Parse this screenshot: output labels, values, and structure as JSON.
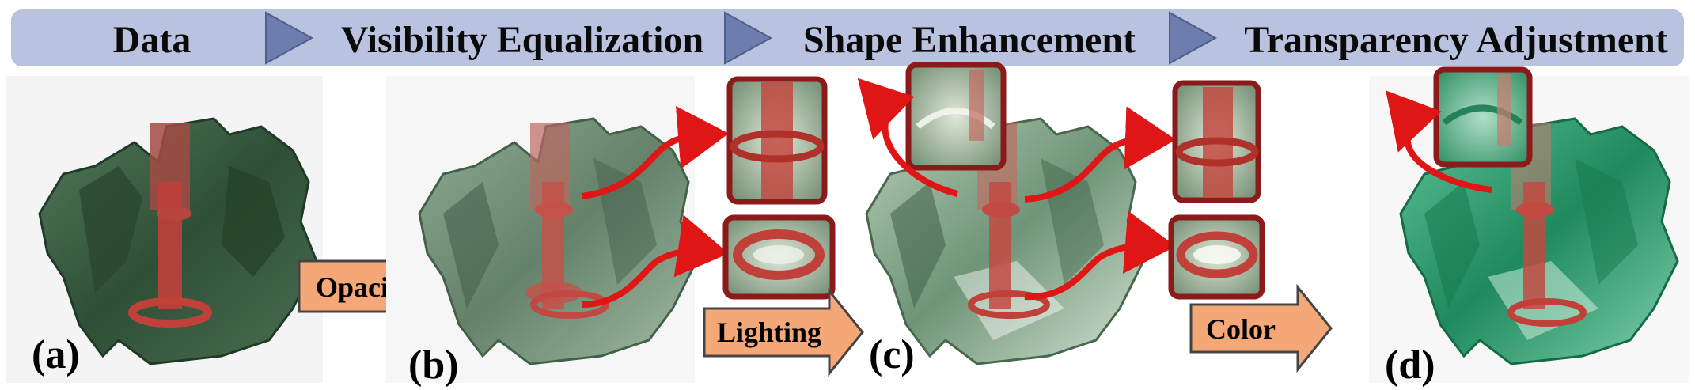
{
  "header": {
    "stages": [
      {
        "label": "Data"
      },
      {
        "label": "Visibility Equalization"
      },
      {
        "label": "Shape Enhancement"
      },
      {
        "label": "Transparency Adjustment"
      }
    ],
    "bar_color": "#b9c2de",
    "chevron_color": "#6d7eae"
  },
  "operations": [
    {
      "label": "Opacity"
    },
    {
      "label": "Lighting"
    },
    {
      "label": "Color"
    }
  ],
  "panels": [
    {
      "label": "(a)"
    },
    {
      "label": "(b)"
    },
    {
      "label": "(c)"
    },
    {
      "label": "(d)"
    }
  ],
  "colors": {
    "operation_arrow": "#f5a877",
    "zoom_frame": "#8b1a1a",
    "callout_arrow": "#e01616",
    "volume_dark_green": "#2f5a3a",
    "volume_teal_green": "#2e9a6a",
    "volume_red": "#c0403a"
  }
}
